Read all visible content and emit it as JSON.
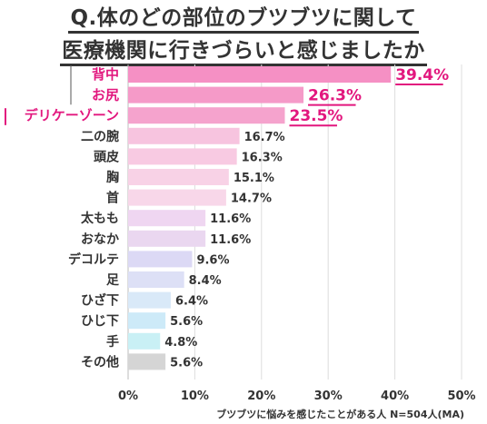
{
  "title": {
    "line1": "Q.体のどの部位のブツブツに関して",
    "line2": "医療機関に行きづらいと感じましたか"
  },
  "chart_data": {
    "type": "bar",
    "orientation": "horizontal",
    "title": "Q.体のどの部位のブツブツに関して 医療機関に行きづらいと感じましたか",
    "xlabel": "ブツブツに悩みを感じたことがある人 N=504人(MA)",
    "xlim": [
      0,
      50
    ],
    "xticks": [
      "0%",
      "10%",
      "20%",
      "30%",
      "40%",
      "50%"
    ],
    "grid": true,
    "categories": [
      "背中",
      "お尻",
      "デリケーゾーン",
      "二の腕",
      "頭皮",
      "胸",
      "首",
      "太もも",
      "おなか",
      "デコルテ",
      "足",
      "ひざ下",
      "ひじ下",
      "手",
      "その他"
    ],
    "values": [
      39.4,
      26.3,
      23.5,
      16.7,
      16.3,
      15.1,
      14.7,
      11.6,
      11.6,
      9.6,
      8.4,
      6.4,
      5.6,
      4.8,
      5.6
    ],
    "value_labels": [
      "39.4%",
      "26.3%",
      "23.5%",
      "16.7%",
      "16.3%",
      "15.1%",
      "14.7%",
      "11.6%",
      "11.6%",
      "9.6%",
      "8.4%",
      "6.4%",
      "5.6%",
      "4.8%",
      "5.6%"
    ],
    "highlight_top": 3,
    "colors": {
      "highlight_text": "#e2177e",
      "bars": [
        "#f590c4",
        "#f59ac8",
        "#f5a3cd",
        "#f7c4df",
        "#f8cae2",
        "#f8d2e6",
        "#f8d7e9",
        "#efd6f1",
        "#ead7f0",
        "#dcd9f5",
        "#dde0f6",
        "#d9e9f8",
        "#cdeaf8",
        "#c9f0f5",
        "#d5d5d5"
      ],
      "grid": "#dddddd",
      "axis_text": "#333333"
    }
  }
}
